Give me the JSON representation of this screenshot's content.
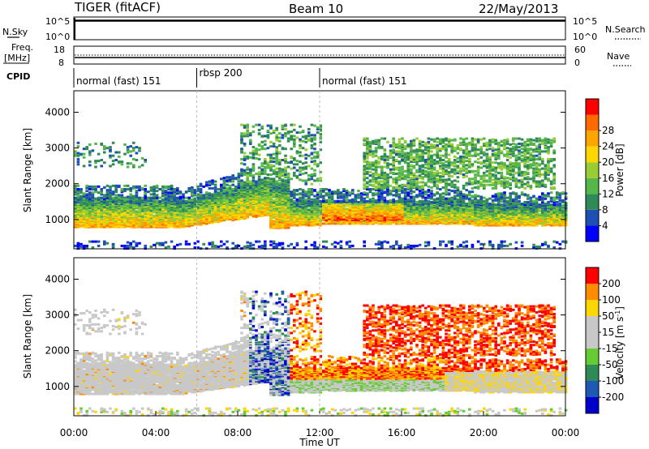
{
  "header": {
    "title": "TIGER (fitACF)",
    "beam": "Beam 10",
    "date": "22/May/2013"
  },
  "top_panels": {
    "nsky_label": "N.Sky",
    "nsky_ticks": [
      "10^5",
      "10^0"
    ],
    "nsearch_label": "N.Search",
    "nsearch_ticks": [
      "10^5",
      "10^0"
    ],
    "freq_label": "Freq.",
    "freq_unit": "[MHz]",
    "freq_ticks": [
      "18",
      "8"
    ],
    "nave_label": "Nave",
    "nave_ticks": [
      "60",
      "0"
    ],
    "cpid_label": "CPID"
  },
  "cpid_segments": [
    {
      "start_hour": 0,
      "end_hour": 6,
      "label": "normal (fast) 151"
    },
    {
      "start_hour": 6,
      "end_hour": 12,
      "label": "rbsp 200"
    },
    {
      "start_hour": 12,
      "end_hour": 24,
      "label": "normal (fast) 151"
    }
  ],
  "colors": {
    "power_scale": [
      "#0000ff",
      "#1e4fb4",
      "#2e8b57",
      "#55b64a",
      "#9acd32",
      "#ffd700",
      "#ffa500",
      "#ff6a00",
      "#ff0000"
    ],
    "velocity_scale": [
      "#0000cc",
      "#1e5ab4",
      "#2e8b57",
      "#66cc33",
      "#c8c8c8",
      "#c8c8c8",
      "#ffd700",
      "#ff8c00",
      "#ff0000"
    ]
  },
  "chart_data": [
    {
      "type": "heatmap",
      "name": "power",
      "xlabel": "",
      "ylabel": "Slant Range [km]",
      "xlim": [
        0,
        24
      ],
      "ylim": [
        180,
        4600
      ],
      "yticks": [
        1000,
        2000,
        3000,
        4000
      ],
      "colorbar": {
        "label": "Power [dB]",
        "ticks": [
          "4",
          "8",
          "12",
          "16",
          "20",
          "24",
          "28"
        ]
      }
    },
    {
      "type": "heatmap",
      "name": "velocity",
      "xlabel": "Time UT",
      "ylabel": "Slant Range [km]",
      "xlim": [
        0,
        24
      ],
      "ylim": [
        180,
        4600
      ],
      "yticks": [
        1000,
        2000,
        3000,
        4000
      ],
      "xticks": [
        "00:00",
        "04:00",
        "08:00",
        "12:00",
        "16:00",
        "20:00",
        "00:00"
      ],
      "colorbar": {
        "label": "Velocity [m s",
        "label_sup": "-1",
        "label_end": "]",
        "ticks": [
          "200",
          "100",
          "50",
          "15",
          "-15",
          "-50",
          "-100",
          "-200"
        ]
      }
    }
  ]
}
